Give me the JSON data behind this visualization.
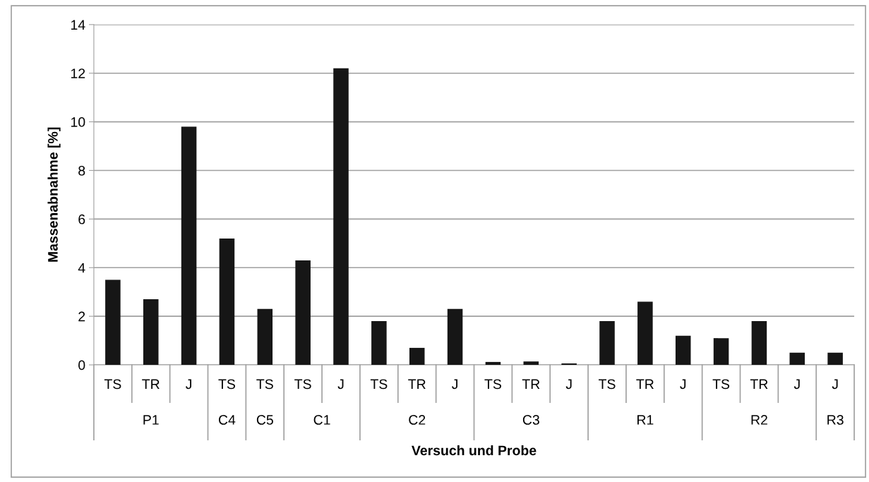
{
  "chart_data": {
    "type": "bar",
    "xlabel": "Versuch und Probe",
    "ylabel": "Massenabnahme [%]",
    "categories": [
      "TS",
      "TR",
      "J",
      "TS",
      "TS",
      "TS",
      "J",
      "TS",
      "TR",
      "J",
      "TS",
      "TR",
      "J",
      "TS",
      "TR",
      "J",
      "TS",
      "TR",
      "J",
      "J"
    ],
    "values": [
      3.5,
      2.7,
      9.8,
      5.2,
      2.3,
      4.3,
      12.2,
      1.8,
      0.7,
      2.3,
      0.12,
      0.14,
      0.06,
      1.8,
      2.6,
      1.2,
      1.1,
      1.8,
      0.5,
      0.5
    ],
    "color": "#161616",
    "ylim": [
      0,
      14
    ],
    "yticks": [
      0,
      2,
      4,
      6,
      8,
      10,
      12,
      14
    ],
    "grid": "y",
    "annotations": [
      "P1",
      "C4",
      "C5",
      "C1",
      "C2",
      "C3",
      "R1",
      "R2",
      "R3"
    ]
  }
}
